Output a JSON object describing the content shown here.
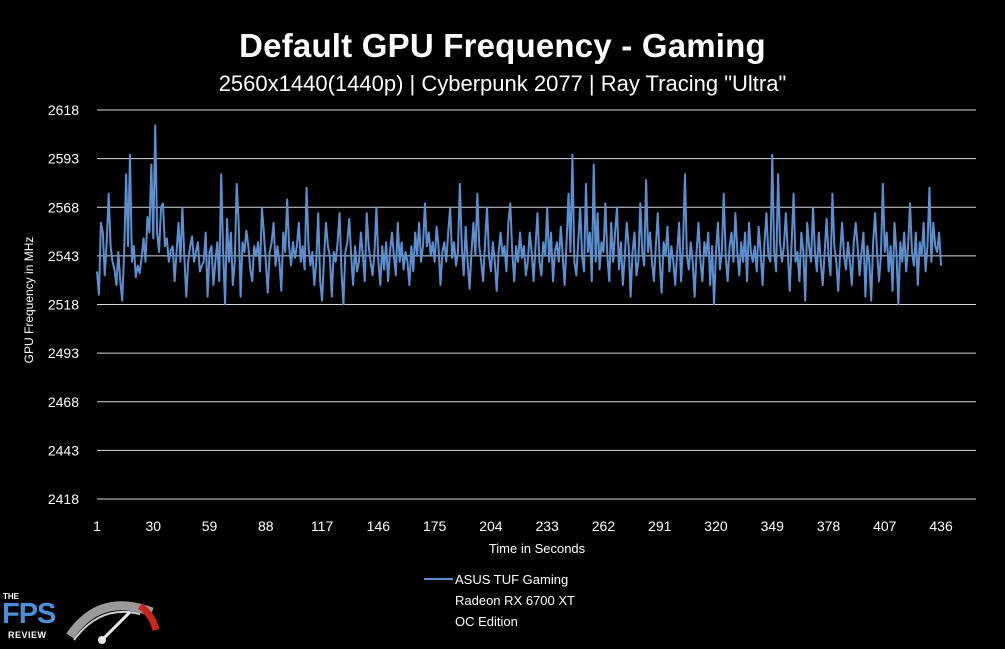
{
  "chart_data": {
    "type": "line",
    "title": "Default GPU Frequency - Gaming",
    "subtitle": "2560x1440(1440p) | Cyberpunk 2077 | Ray Tracing \"Ultra\"",
    "xlabel": "Time in Seconds",
    "ylabel": "GPU Frequency in MHz",
    "ylim": [
      2418,
      2618
    ],
    "yticks": [
      2418,
      2443,
      2468,
      2493,
      2518,
      2543,
      2568,
      2593,
      2618
    ],
    "xlim": [
      1,
      454
    ],
    "xticks": [
      1,
      30,
      59,
      88,
      117,
      146,
      175,
      204,
      233,
      262,
      291,
      320,
      349,
      378,
      407,
      436
    ],
    "grid": true,
    "legend_placement": "bottom",
    "series": [
      {
        "name": "ASUS TUF Gaming\nRadeon RX 6700 XT\nOC Edition",
        "color": "#5b8fcf",
        "x_start": 1,
        "x_step": 1,
        "values": [
          2535,
          2523,
          2560,
          2555,
          2533,
          2550,
          2575,
          2548,
          2540,
          2536,
          2528,
          2545,
          2530,
          2520,
          2545,
          2585,
          2548,
          2595,
          2540,
          2548,
          2532,
          2538,
          2534,
          2542,
          2552,
          2540,
          2563,
          2555,
          2590,
          2552,
          2610,
          2555,
          2545,
          2568,
          2570,
          2548,
          2552,
          2540,
          2546,
          2548,
          2530,
          2545,
          2560,
          2540,
          2568,
          2543,
          2522,
          2540,
          2548,
          2553,
          2540,
          2545,
          2550,
          2535,
          2538,
          2540,
          2555,
          2522,
          2545,
          2548,
          2528,
          2540,
          2550,
          2530,
          2585,
          2545,
          2518,
          2562,
          2540,
          2555,
          2528,
          2540,
          2580,
          2560,
          2522,
          2550,
          2545,
          2556,
          2548,
          2536,
          2530,
          2548,
          2543,
          2550,
          2535,
          2568,
          2555,
          2540,
          2524,
          2545,
          2550,
          2560,
          2538,
          2548,
          2540,
          2525,
          2555,
          2545,
          2572,
          2548,
          2538,
          2550,
          2542,
          2548,
          2560,
          2540,
          2548,
          2536,
          2578,
          2548,
          2538,
          2545,
          2528,
          2540,
          2565,
          2530,
          2520,
          2542,
          2560,
          2548,
          2543,
          2522,
          2545,
          2540,
          2550,
          2565,
          2535,
          2518,
          2545,
          2550,
          2562,
          2543,
          2528,
          2548,
          2535,
          2540,
          2555,
          2543,
          2530,
          2565,
          2548,
          2540,
          2533,
          2545,
          2568,
          2540,
          2528,
          2548,
          2536,
          2550,
          2530,
          2545,
          2555,
          2543,
          2533,
          2560,
          2540,
          2550,
          2536,
          2545,
          2540,
          2528,
          2548,
          2535,
          2555,
          2543,
          2560,
          2540,
          2548,
          2570,
          2548,
          2555,
          2543,
          2550,
          2540,
          2558,
          2548,
          2528,
          2545,
          2550,
          2540,
          2555,
          2568,
          2542,
          2550,
          2538,
          2545,
          2580,
          2548,
          2533,
          2558,
          2540,
          2526,
          2545,
          2560,
          2543,
          2575,
          2548,
          2540,
          2530,
          2550,
          2568,
          2543,
          2535,
          2550,
          2540,
          2525,
          2545,
          2555,
          2543,
          2548,
          2535,
          2560,
          2570,
          2545,
          2530,
          2548,
          2540,
          2555,
          2542,
          2548,
          2533,
          2540,
          2555,
          2545,
          2530,
          2548,
          2565,
          2540,
          2533,
          2550,
          2543,
          2568,
          2540,
          2555,
          2530,
          2545,
          2550,
          2540,
          2558,
          2543,
          2528,
          2550,
          2575,
          2545,
          2595,
          2540,
          2533,
          2550,
          2568,
          2543,
          2535,
          2580,
          2545,
          2555,
          2530,
          2590,
          2540,
          2565,
          2536,
          2550,
          2545,
          2570,
          2543,
          2530,
          2560,
          2540,
          2555,
          2568,
          2536,
          2550,
          2528,
          2543,
          2560,
          2548,
          2522,
          2545,
          2555,
          2533,
          2540,
          2570,
          2545,
          2538,
          2582,
          2545,
          2555,
          2540,
          2530,
          2548,
          2565,
          2540,
          2524,
          2550,
          2543,
          2558,
          2535,
          2548,
          2540,
          2528,
          2545,
          2560,
          2530,
          2548,
          2585,
          2543,
          2536,
          2550,
          2540,
          2522,
          2545,
          2560,
          2540,
          2530,
          2550,
          2543,
          2555,
          2528,
          2548,
          2518,
          2545,
          2560,
          2536,
          2545,
          2575,
          2543,
          2530,
          2548,
          2555,
          2540,
          2565,
          2545,
          2533,
          2550,
          2540,
          2555,
          2530,
          2560,
          2545,
          2540,
          2548,
          2535,
          2558,
          2545,
          2528,
          2550,
          2565,
          2543,
          2540,
          2595,
          2545,
          2535,
          2585,
          2550,
          2540,
          2548,
          2565,
          2545,
          2525,
          2550,
          2575,
          2540,
          2545,
          2530,
          2555,
          2545,
          2520,
          2560,
          2548,
          2540,
          2568,
          2545,
          2535,
          2555,
          2540,
          2528,
          2545,
          2562,
          2543,
          2533,
          2575,
          2548,
          2540,
          2525,
          2545,
          2560,
          2543,
          2536,
          2550,
          2540,
          2528,
          2550,
          2560,
          2548,
          2533,
          2545,
          2555,
          2522,
          2548,
          2540,
          2520,
          2550,
          2565,
          2545,
          2530,
          2543,
          2580,
          2545,
          2555,
          2535,
          2548,
          2525,
          2560,
          2545,
          2518,
          2550,
          2540,
          2555,
          2535,
          2548,
          2570,
          2545,
          2538,
          2555,
          2528,
          2550,
          2543,
          2560,
          2535,
          2548,
          2578,
          2540,
          2560,
          2548,
          2545,
          2555,
          2538
        ]
      }
    ]
  },
  "logo": {
    "the": "THE",
    "fps": "FPS",
    "review": "REVIEW"
  }
}
